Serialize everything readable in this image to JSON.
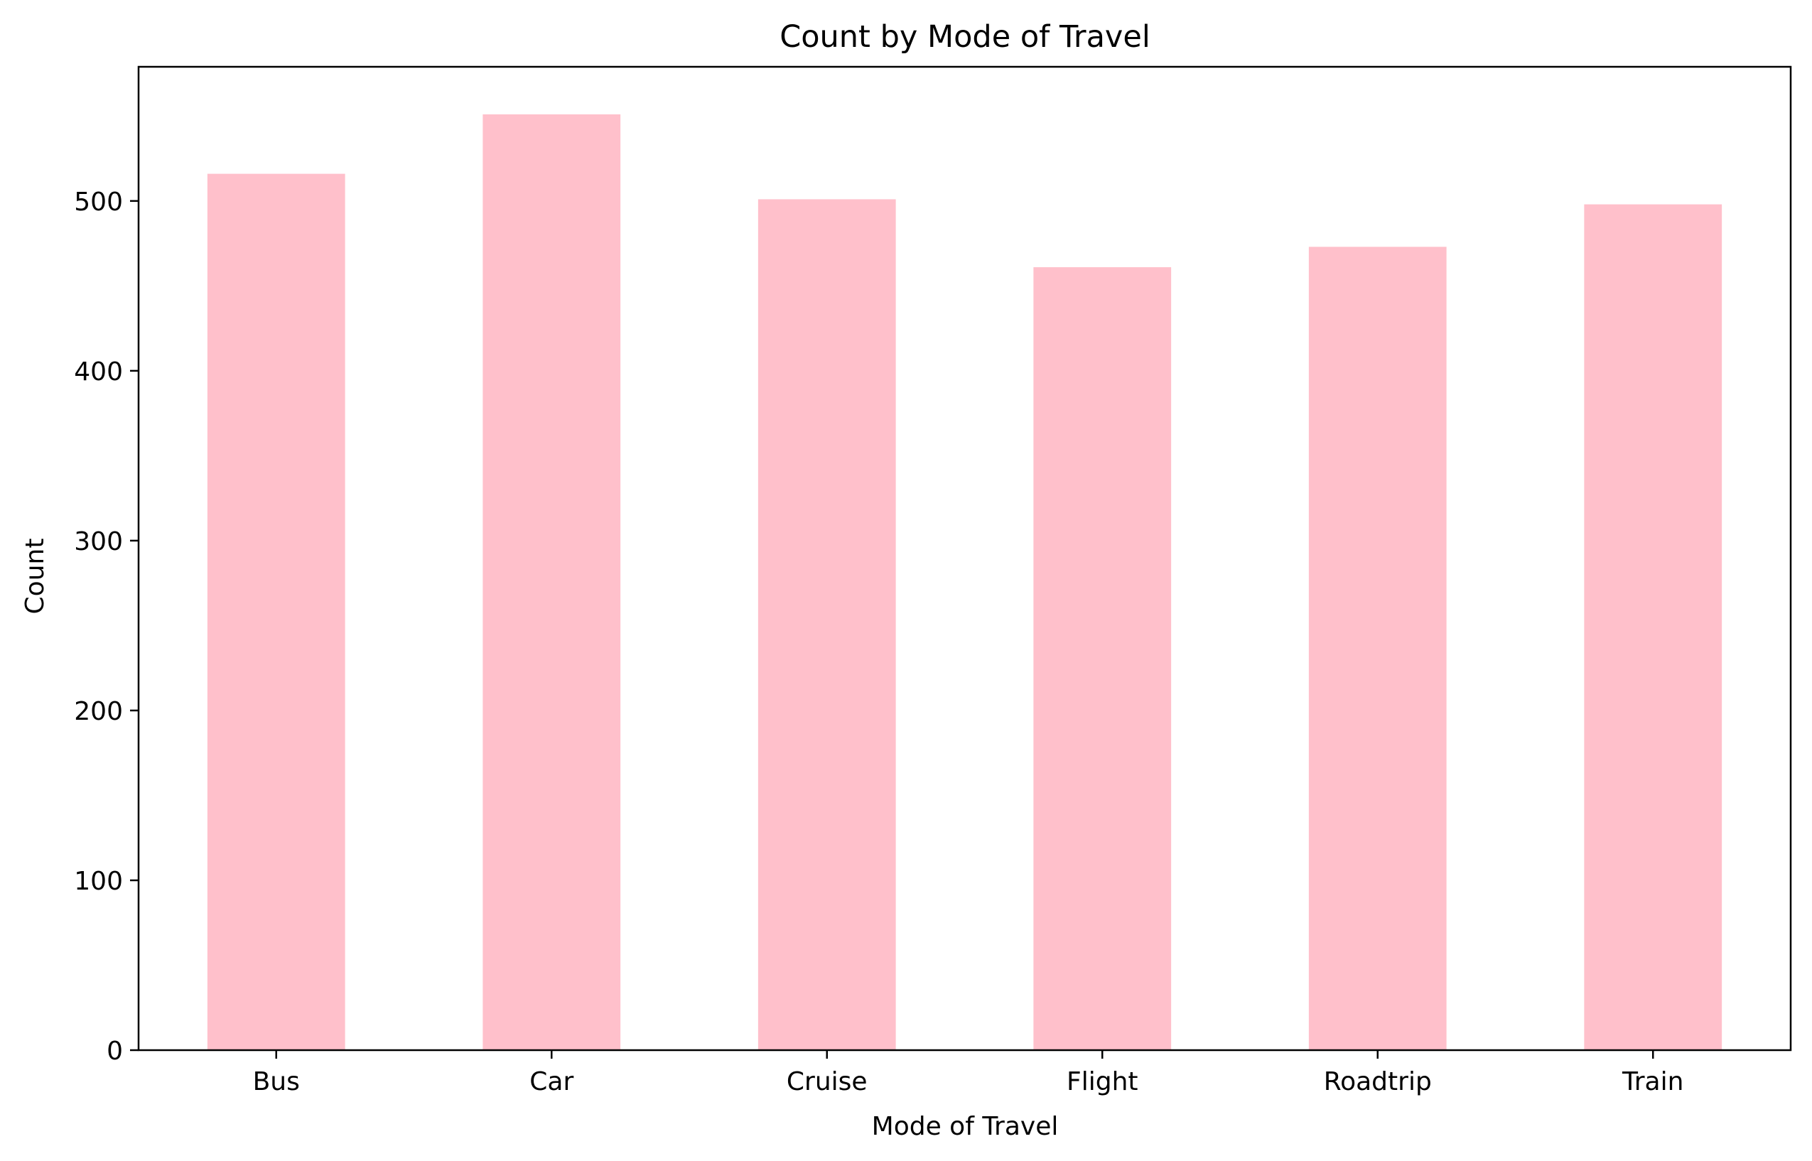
{
  "chart_data": {
    "type": "bar",
    "title": "Count by Mode of Travel",
    "xlabel": "Mode of Travel",
    "ylabel": "Count",
    "categories": [
      "Bus",
      "Car",
      "Cruise",
      "Flight",
      "Roadtrip",
      "Train"
    ],
    "values": [
      516,
      551,
      501,
      461,
      473,
      498
    ],
    "ylim": [
      0,
      579
    ],
    "yticks": [
      0,
      100,
      200,
      300,
      400,
      500
    ],
    "ytick_labels": [
      "0",
      "100",
      "200",
      "300",
      "400",
      "500"
    ],
    "grid": false,
    "legend": null,
    "colors": {
      "bar": "#ffc0cb",
      "axes": "#000000",
      "background": "#ffffff"
    }
  }
}
